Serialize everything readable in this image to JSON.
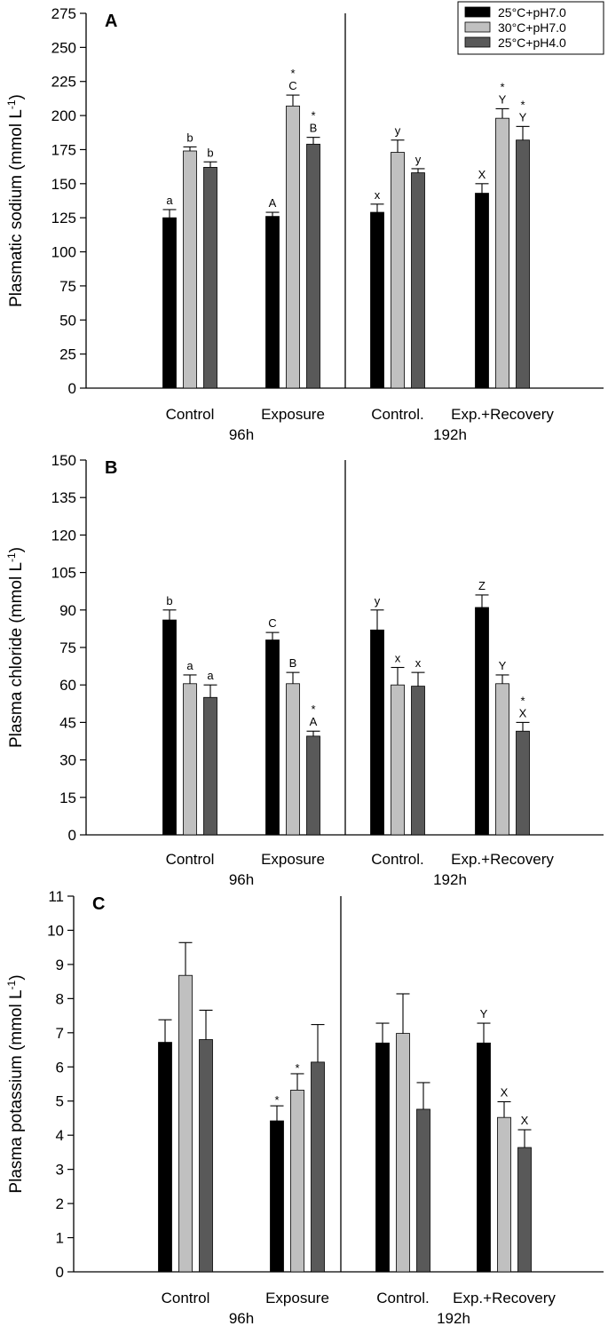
{
  "legend": [
    {
      "name": "25°C+pH7.0",
      "color": "#000000"
    },
    {
      "name": "30°C+pH7.0",
      "color": "#c0c0c0"
    },
    {
      "name": "25°C+pH4.0",
      "color": "#595959"
    }
  ],
  "chart_data": [
    {
      "type": "bar",
      "panel_label": "A",
      "ylabel": "Plasmatic sodium (mmol L",
      "ylabel_sup": "-1",
      "ylabel_close": ")",
      "ylim": [
        0,
        275
      ],
      "yticks": [
        0,
        25,
        50,
        75,
        100,
        125,
        150,
        175,
        200,
        225,
        250,
        275
      ],
      "categories": [
        "Control",
        "Exposure",
        "Control.",
        "Exp.+Recovery"
      ],
      "groups": [
        "96h",
        "192h"
      ],
      "series": [
        {
          "name": "25°C+pH7.0",
          "values": [
            125,
            126,
            129,
            143
          ],
          "errors": [
            6,
            3,
            6,
            7
          ],
          "labels": [
            "a",
            "A",
            "x",
            "X"
          ],
          "stars": [
            "",
            "",
            "",
            ""
          ]
        },
        {
          "name": "30°C+pH7.0",
          "values": [
            174,
            207,
            173,
            198
          ],
          "errors": [
            3,
            8,
            9,
            7
          ],
          "labels": [
            "b",
            "C",
            "y",
            "Y"
          ],
          "stars": [
            "",
            "*",
            "",
            "*"
          ]
        },
        {
          "name": "25°C+pH4.0",
          "values": [
            162,
            179,
            158,
            182
          ],
          "errors": [
            4,
            5,
            3,
            10
          ],
          "labels": [
            "b",
            "B",
            "y",
            "Y"
          ],
          "stars": [
            "",
            "*",
            "",
            "*"
          ]
        }
      ]
    },
    {
      "type": "bar",
      "panel_label": "B",
      "ylabel": "Plasma chloride (mmol L",
      "ylabel_sup": "-1",
      "ylabel_close": ")",
      "ylim": [
        0,
        150
      ],
      "yticks": [
        0,
        15,
        30,
        45,
        60,
        75,
        90,
        105,
        120,
        135,
        150
      ],
      "categories": [
        "Control",
        "Exposure",
        "Control.",
        "Exp.+Recovery"
      ],
      "groups": [
        "96h",
        "192h"
      ],
      "series": [
        {
          "name": "25°C+pH7.0",
          "values": [
            86,
            78,
            82,
            91
          ],
          "errors": [
            4,
            3,
            8,
            5
          ],
          "labels": [
            "b",
            "C",
            "y",
            "Z"
          ],
          "stars": [
            "",
            "",
            "",
            ""
          ]
        },
        {
          "name": "30°C+pH7.0",
          "values": [
            60.5,
            60.5,
            60,
            60.5
          ],
          "errors": [
            3.5,
            4.5,
            7,
            3.5
          ],
          "labels": [
            "a",
            "B",
            "x",
            "Y"
          ],
          "stars": [
            "",
            "",
            "",
            ""
          ]
        },
        {
          "name": "25°C+pH4.0",
          "values": [
            55,
            39.5,
            59.5,
            41.5
          ],
          "errors": [
            5,
            2,
            5.5,
            3.5
          ],
          "labels": [
            "a",
            "A",
            "x",
            "X"
          ],
          "stars": [
            "",
            "*",
            "",
            "*"
          ]
        }
      ]
    },
    {
      "type": "bar",
      "panel_label": "C",
      "ylabel": "Plasma potassium (mmol L",
      "ylabel_sup": "-1",
      "ylabel_close": ")",
      "ylim": [
        0,
        11
      ],
      "yticks": [
        0,
        1,
        2,
        3,
        4,
        5,
        6,
        7,
        8,
        9,
        10,
        11
      ],
      "categories": [
        "Control",
        "Exposure",
        "Control.",
        "Exp.+Recovery"
      ],
      "groups": [
        "96h",
        "192h"
      ],
      "series": [
        {
          "name": "25°C+pH7.0",
          "values": [
            6.72,
            4.42,
            6.7,
            6.7
          ],
          "errors": [
            0.66,
            0.44,
            0.58,
            0.58
          ],
          "labels": [
            "",
            "",
            "",
            "Y"
          ],
          "stars": [
            "",
            "*",
            "",
            ""
          ]
        },
        {
          "name": "30°C+pH7.0",
          "values": [
            8.68,
            5.32,
            6.98,
            4.52
          ],
          "errors": [
            0.96,
            0.48,
            1.16,
            0.46
          ],
          "labels": [
            "",
            "",
            "",
            "X"
          ],
          "stars": [
            "",
            "*",
            "",
            ""
          ]
        },
        {
          "name": "25°C+pH4.0",
          "values": [
            6.8,
            6.14,
            4.76,
            3.64
          ],
          "errors": [
            0.86,
            1.1,
            0.78,
            0.52
          ],
          "labels": [
            "",
            "",
            "",
            "X"
          ],
          "stars": [
            "",
            "",
            "",
            ""
          ]
        }
      ]
    }
  ]
}
